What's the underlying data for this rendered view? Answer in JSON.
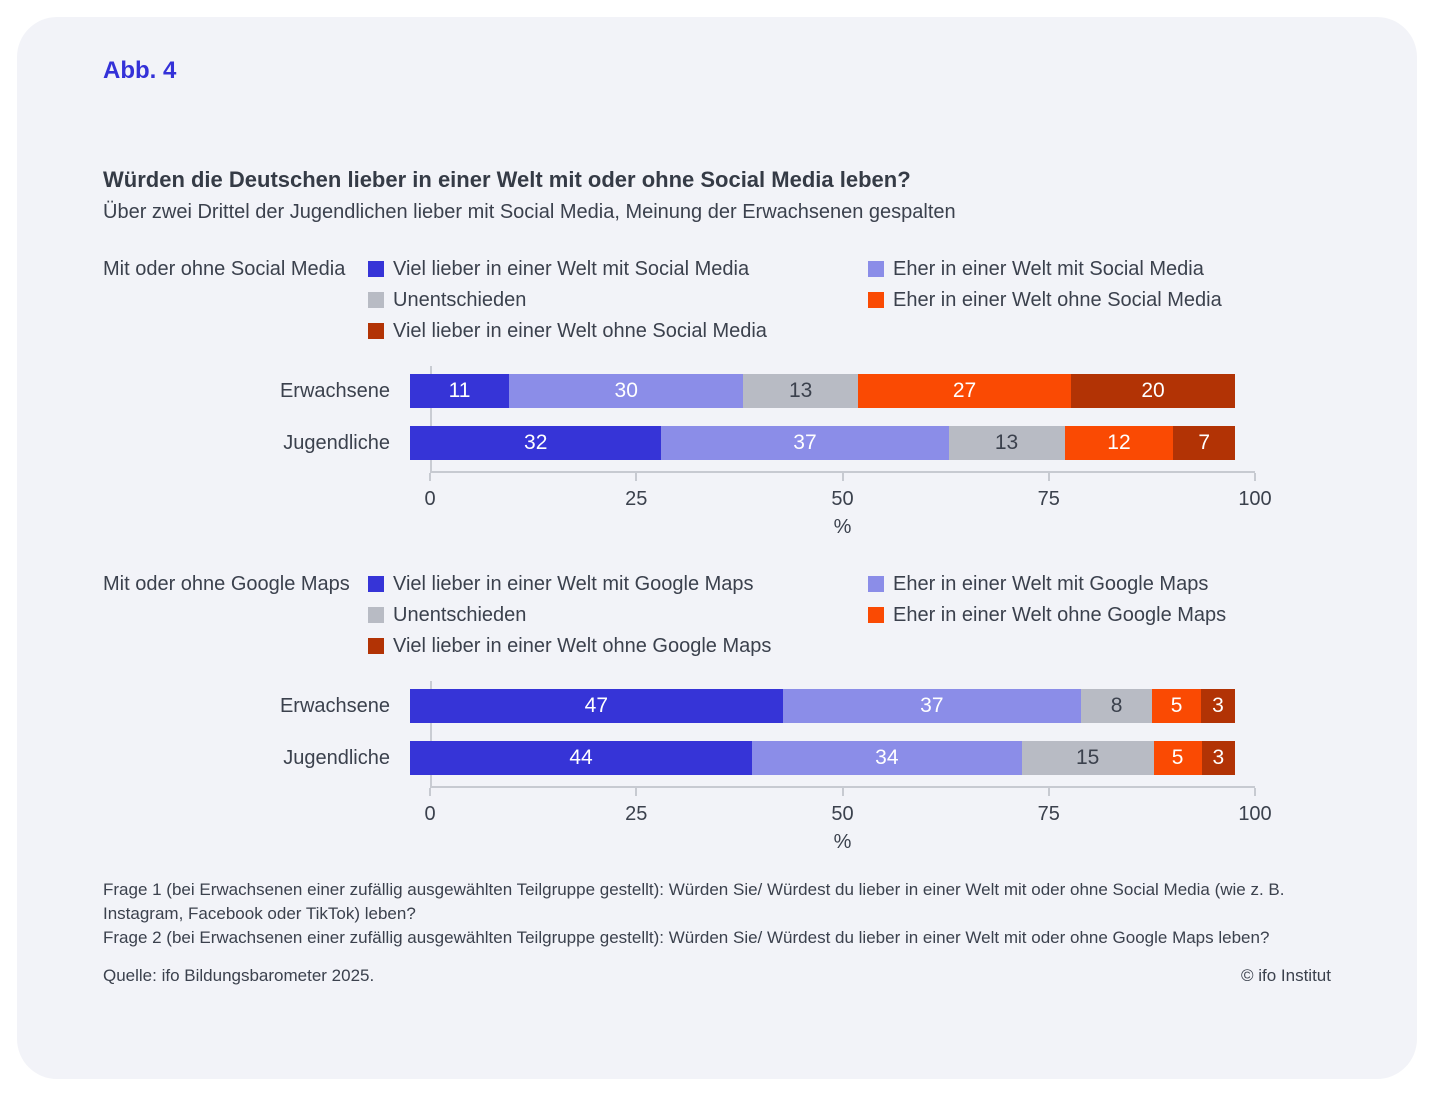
{
  "page": {
    "background": "#ffffff",
    "card_background": "#f2f3f8",
    "accent_blue": "#3431d8",
    "text_color": "#3b414d",
    "axis_color": "#c7cad1"
  },
  "header": {
    "fig_label": "Abb. 4",
    "title": "Würden die Deutschen lieber in einer Welt mit oder ohne Social Media leben?",
    "subtitle": "Über zwei Drittel der Jugendlichen lieber mit Social Media, Meinung der Erwachsenen gespalten"
  },
  "chart_data": [
    {
      "type": "bar",
      "stacked": true,
      "orientation": "horizontal",
      "section_label": "Mit oder ohne Social Media",
      "categories": [
        "Erwachsene",
        "Jugendliche"
      ],
      "series": [
        {
          "name": "Viel lieber in einer Welt mit Social Media",
          "color": "#3634d7",
          "text_color": "#ffffff",
          "values": [
            11,
            32
          ]
        },
        {
          "name": "Eher in einer Welt mit Social Media",
          "color": "#8b8de8",
          "text_color": "#ffffff",
          "values": [
            30,
            37
          ]
        },
        {
          "name": "Unentschieden",
          "color": "#b8bbc4",
          "text_color": "#3b414d",
          "values": [
            13,
            13
          ]
        },
        {
          "name": "Eher in einer Welt ohne Social Media",
          "color": "#fa4a03",
          "text_color": "#ffffff",
          "values": [
            27,
            12
          ]
        },
        {
          "name": "Viel lieber in einer Welt ohne Social Media",
          "color": "#b23305",
          "text_color": "#ffffff",
          "values": [
            20,
            7
          ]
        }
      ],
      "xticks": [
        0,
        25,
        50,
        75,
        100
      ],
      "xlim": [
        0,
        100
      ],
      "xlabel": "%",
      "legend_position": "top-two-columns",
      "grid": false,
      "value_labels": "inside-center"
    },
    {
      "type": "bar",
      "stacked": true,
      "orientation": "horizontal",
      "section_label": "Mit oder ohne Google Maps",
      "categories": [
        "Erwachsene",
        "Jugendliche"
      ],
      "series": [
        {
          "name": "Viel lieber in einer Welt mit Google Maps",
          "color": "#3634d7",
          "text_color": "#ffffff",
          "values": [
            47,
            44
          ]
        },
        {
          "name": "Eher in einer Welt mit Google Maps",
          "color": "#8b8de8",
          "text_color": "#ffffff",
          "values": [
            37,
            34
          ]
        },
        {
          "name": "Unentschieden",
          "color": "#b8bbc4",
          "text_color": "#3b414d",
          "values": [
            8,
            15
          ]
        },
        {
          "name": "Eher in einer Welt ohne Google Maps",
          "color": "#fa4a03",
          "text_color": "#ffffff",
          "values": [
            5,
            5
          ]
        },
        {
          "name": "Viel lieber in einer Welt ohne Google Maps",
          "color": "#b23305",
          "text_color": "#ffffff",
          "values": [
            3,
            3
          ]
        }
      ],
      "xticks": [
        0,
        25,
        50,
        75,
        100
      ],
      "xlim": [
        0,
        100
      ],
      "xlabel": "%",
      "legend_position": "top-two-columns",
      "grid": false,
      "value_labels": "inside-center"
    }
  ],
  "footnotes": {
    "frage1": "Frage 1 (bei Erwachsenen einer zufällig ausgewählten Teilgruppe gestellt): Würden Sie/ Würdest du lieber in einer Welt mit oder ohne Social Media (wie z. B. Instagram, Facebook oder TikTok) leben?",
    "frage2": "Frage 2 (bei Erwachsenen einer zufällig ausgewählten Teilgruppe gestellt): Würden Sie/ Würdest du lieber in einer Welt mit oder ohne Google Maps leben?"
  },
  "source": {
    "left": "Quelle: ifo Bildungsbarometer 2025.",
    "right": "© ifo Institut"
  }
}
